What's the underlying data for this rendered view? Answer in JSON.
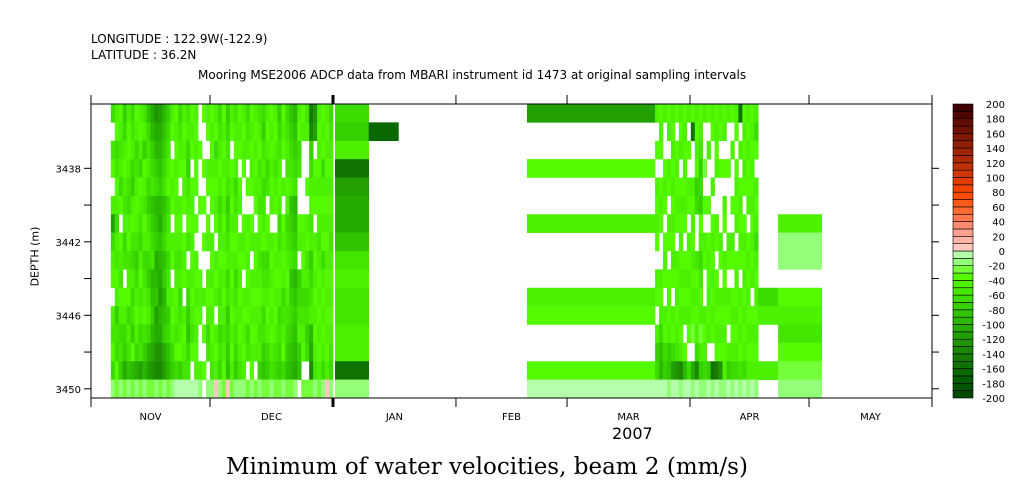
{
  "header": {
    "longitude": "LONGITUDE : 122.9W(-122.9)",
    "latitude": "LATITUDE : 36.2N",
    "subtitle": "Mooring MSE2006 ADCP data from MBARI instrument id 1473 at original sampling intervals"
  },
  "chart_data": {
    "type": "heatmap",
    "title": "Minimum of water velocities, beam 2 (mm/s)",
    "subtitle": "Mooring MSE2006 ADCP data from MBARI instrument id 1473 at original sampling intervals",
    "xlabel": "2007",
    "ylabel": "DEPTH (m)",
    "x_start_day_of": "NOV 1",
    "xlim_days": [
      0,
      212
    ],
    "month_ticks_days": [
      0,
      30,
      61,
      92,
      120,
      151,
      181,
      212
    ],
    "year_tick_day": 61,
    "month_labels": [
      "NOV",
      "DEC",
      "JAN",
      "FEB",
      "MAR",
      "APR",
      "MAY"
    ],
    "ylim": [
      3434.5,
      3450.5
    ],
    "y_reversed": true,
    "depths": [
      3435,
      3436,
      3437,
      3438,
      3439,
      3440,
      3441,
      3442,
      3443,
      3444,
      3445,
      3446,
      3447,
      3448,
      3449,
      3450
    ],
    "y_tick_labels": [
      "3438",
      "3442",
      "3446",
      "3450"
    ],
    "y_minor_ticks": [
      3440,
      3444,
      3448
    ],
    "code_legend": "each char = one depth row (top 3435 to bottom 3450); A..T = bins -200..-190 ... -10..0, a..t = bins 0..10 ... 190..200, '.' = missing",
    "blocks": [
      {
        "start_day": 5,
        "day_step": 1,
        "columns": [
          "N.OQ.PINPQ.POQNS",
          "PQNOQPNPOQPMONQR",
          "QPOPNQ.QPOQPNOMS",
          "MNPQPOPNO.QPNMJR",
          "PQQPONPQOPQNPOLS",
          "NOPNMPQONPNOMQKR",
          "QPNOPQPOMNPQPNJS",
          "PQPNQPONPQOPNOIR",
          "OPMQPOQPNOPQOMKS",
          "LNOPNMOPNMOPNKIR",
          "JKMNOLMNOKLMKJHR",
          "HJKMNKLMJKLIJHGS",
          "IJKLMKJLKJIKJHGR",
          "KLMNOLMNLMKLMJIS",
          "MNOPQNOPNOPMNLKR",
          "PQ.QPQ.PQ.PQPNMS",
          "QPQPQPQPOPQPOQNT",
          "NOPQ.PQPOPNOPQMT",
          "PQPQPQ.QPQ.PQPOT",
          "OPNMOPQO.PNMLNOT",
          "QPQ.QPQPQPQPOQ.T",
          "PQPQQ.Q.PQPQPQPT",
          "..Q..Q...QPQ..PS",
          "Q..Q.Q.Q..P.Q.Q.",
          "PQ.PQ.QP.PQPNO.S",
          "QPQPQQ.PQPQPQPOS",
          "PQNPQPQ.PQP.PQPa",
          "NOPQPNOPQPOPNONS",
          "QPQPQPQPQPQPOPQR",
          "MNOPOMNOPNOMNMLa",
          "PQ.QPQPQPQPQPQPR",
          "OPQPNOPQPNOPONMS",
          "QPQ.QP.PQPQPQPOS",
          "PQPQ..QPQ.PQPQPS",
          "NOP.Q.PQPQPQNO.R",
          "QPQPQ.QP.PQPQPQS",
          "PQPQPQ.PQPQPQP.R",
          "OPQOPOQPOPQPOPMS",
          "NMOPNOPQNOPNOMLR",
          "PQPNO.QPNOPQPNMR",
          "QPQPQP.PQPQPQPOS",
          "PQPOPQ.QPQPQPONR",
          "MNOPQPNOPQPNONMR",
          "QPQ.P.QPQPNOPQNS",
          "NOPOQPNOPQPONMLR",
          "LMNOPLMNOLMNMLKR",
          "KLMNOKLMNKLMLKJS",
          "PQNO..QP.MNOPML.",
          "QP....QPQPNOPQ.R",
          "OP..Q.PQOPNOMN.R",
          "FGMNPQOPMNOPKJGR",
          "HI.QPQ.PQPQPQPOS",
          "PQPQPQPOPQPQPQPR",
          "QPQNPQPQNPQPQPNS",
          "PQPQPQPQPQPQPQPa",
          "NOPQPQPOPQPQPONS"
        ]
      },
      {
        "start_day": 61.5,
        "day_step": 8.5,
        "columns": [
          "NMPEIJJLOPOOPPES"
        ]
      },
      {
        "start_day": 70,
        "day_step": 7.5,
        "columns": [
          ".D.............."
        ]
      },
      {
        "start_day": 109.9,
        "day_step": 32.3,
        "columns": [
          "I..Q..P...PQ..QT"
        ]
      },
      {
        "start_day": 142.2,
        "day_step": 1,
        "columns": [
          "P.Q.PQPQ.PQ.PMNT",
          "QPQ.QPQ..PQPNLKT",
          "P..QPQ.QPQ.PQNMT",
          "QP.PQ.PQ.QPQPMLS",
          "PQPQPQPQPQ.PQNIT",
          "Q.QPQPQ.PQPQPOHT",
          "PQP.QPQPQPQPQPGS",
          "QPQPQPQ.QPQP.QKT",
          "P.Q.PQ.PQPQPQ.NT",
          "QE..PQPQPQPQR.JS",
          "PQPQMN..OQPQPNGT",
          "QPOMNMQPNOQPRPMS",
          "P..R.Q.PQ..PQPNS",
          "Q.P..Q.QPQPQP.MT",
          "PQ..P.QPQPQPQ.ES",
          "QPQP..PQ.QPQPQFT",
          "PQ.Q...PQ.PQPQHS",
          "QP.Q.PQ.PQPQPQPS",
          "P..Q...PQ.PQ.PMT",
          "Q.P..Q.PQ.QPQPNS",
          "PQ.QPQP.QPQPQPNT",
          "E.P.QPQPQ.PQPQOS",
          "QPQPQ.QPQPQPQPNT",
          "PQPQQP.QPQPQPQPS",
          "QPQPQPQPQP.QPQPT",
          "PNQ.PQPNPQPQPQPS"
        ]
      },
      {
        "start_day": 168.2,
        "day_step": 5,
        "columns": [
          "..........NP..P."
        ]
      },
      {
        "start_day": 173.2,
        "day_step": 11,
        "columns": [
          "......PSS.QPOQRS"
        ]
      }
    ],
    "colorbar": {
      "min": -200,
      "max": 200,
      "step": 10,
      "labels": [
        "200",
        "180",
        "160",
        "140",
        "120",
        "100",
        "80",
        "60",
        "40",
        "20",
        "0",
        "-20",
        "-40",
        "-60",
        "-80",
        "-100",
        "-120",
        "-140",
        "-160",
        "-180",
        "-200"
      ],
      "colors_low_to_high": [
        "#004a00",
        "#005400",
        "#005e00",
        "#0a6800",
        "#107200",
        "#167c00",
        "#1a8800",
        "#1f9400",
        "#22a000",
        "#26ac00",
        "#2ab800",
        "#30c400",
        "#36d000",
        "#3ddc00",
        "#44e600",
        "#4cf000",
        "#55fa00",
        "#74ff3a",
        "#94ff78",
        "#b4ffaa",
        "#ffc8c0",
        "#ffb4a8",
        "#ffa090",
        "#ff8a70",
        "#ff7850",
        "#ff6a30",
        "#ff5a18",
        "#ff4c00",
        "#f04400",
        "#e03c00",
        "#d03600",
        "#c03000",
        "#b02a00",
        "#a02400",
        "#901e00",
        "#801800",
        "#701200",
        "#600c00",
        "#500600",
        "#400000"
      ]
    }
  }
}
